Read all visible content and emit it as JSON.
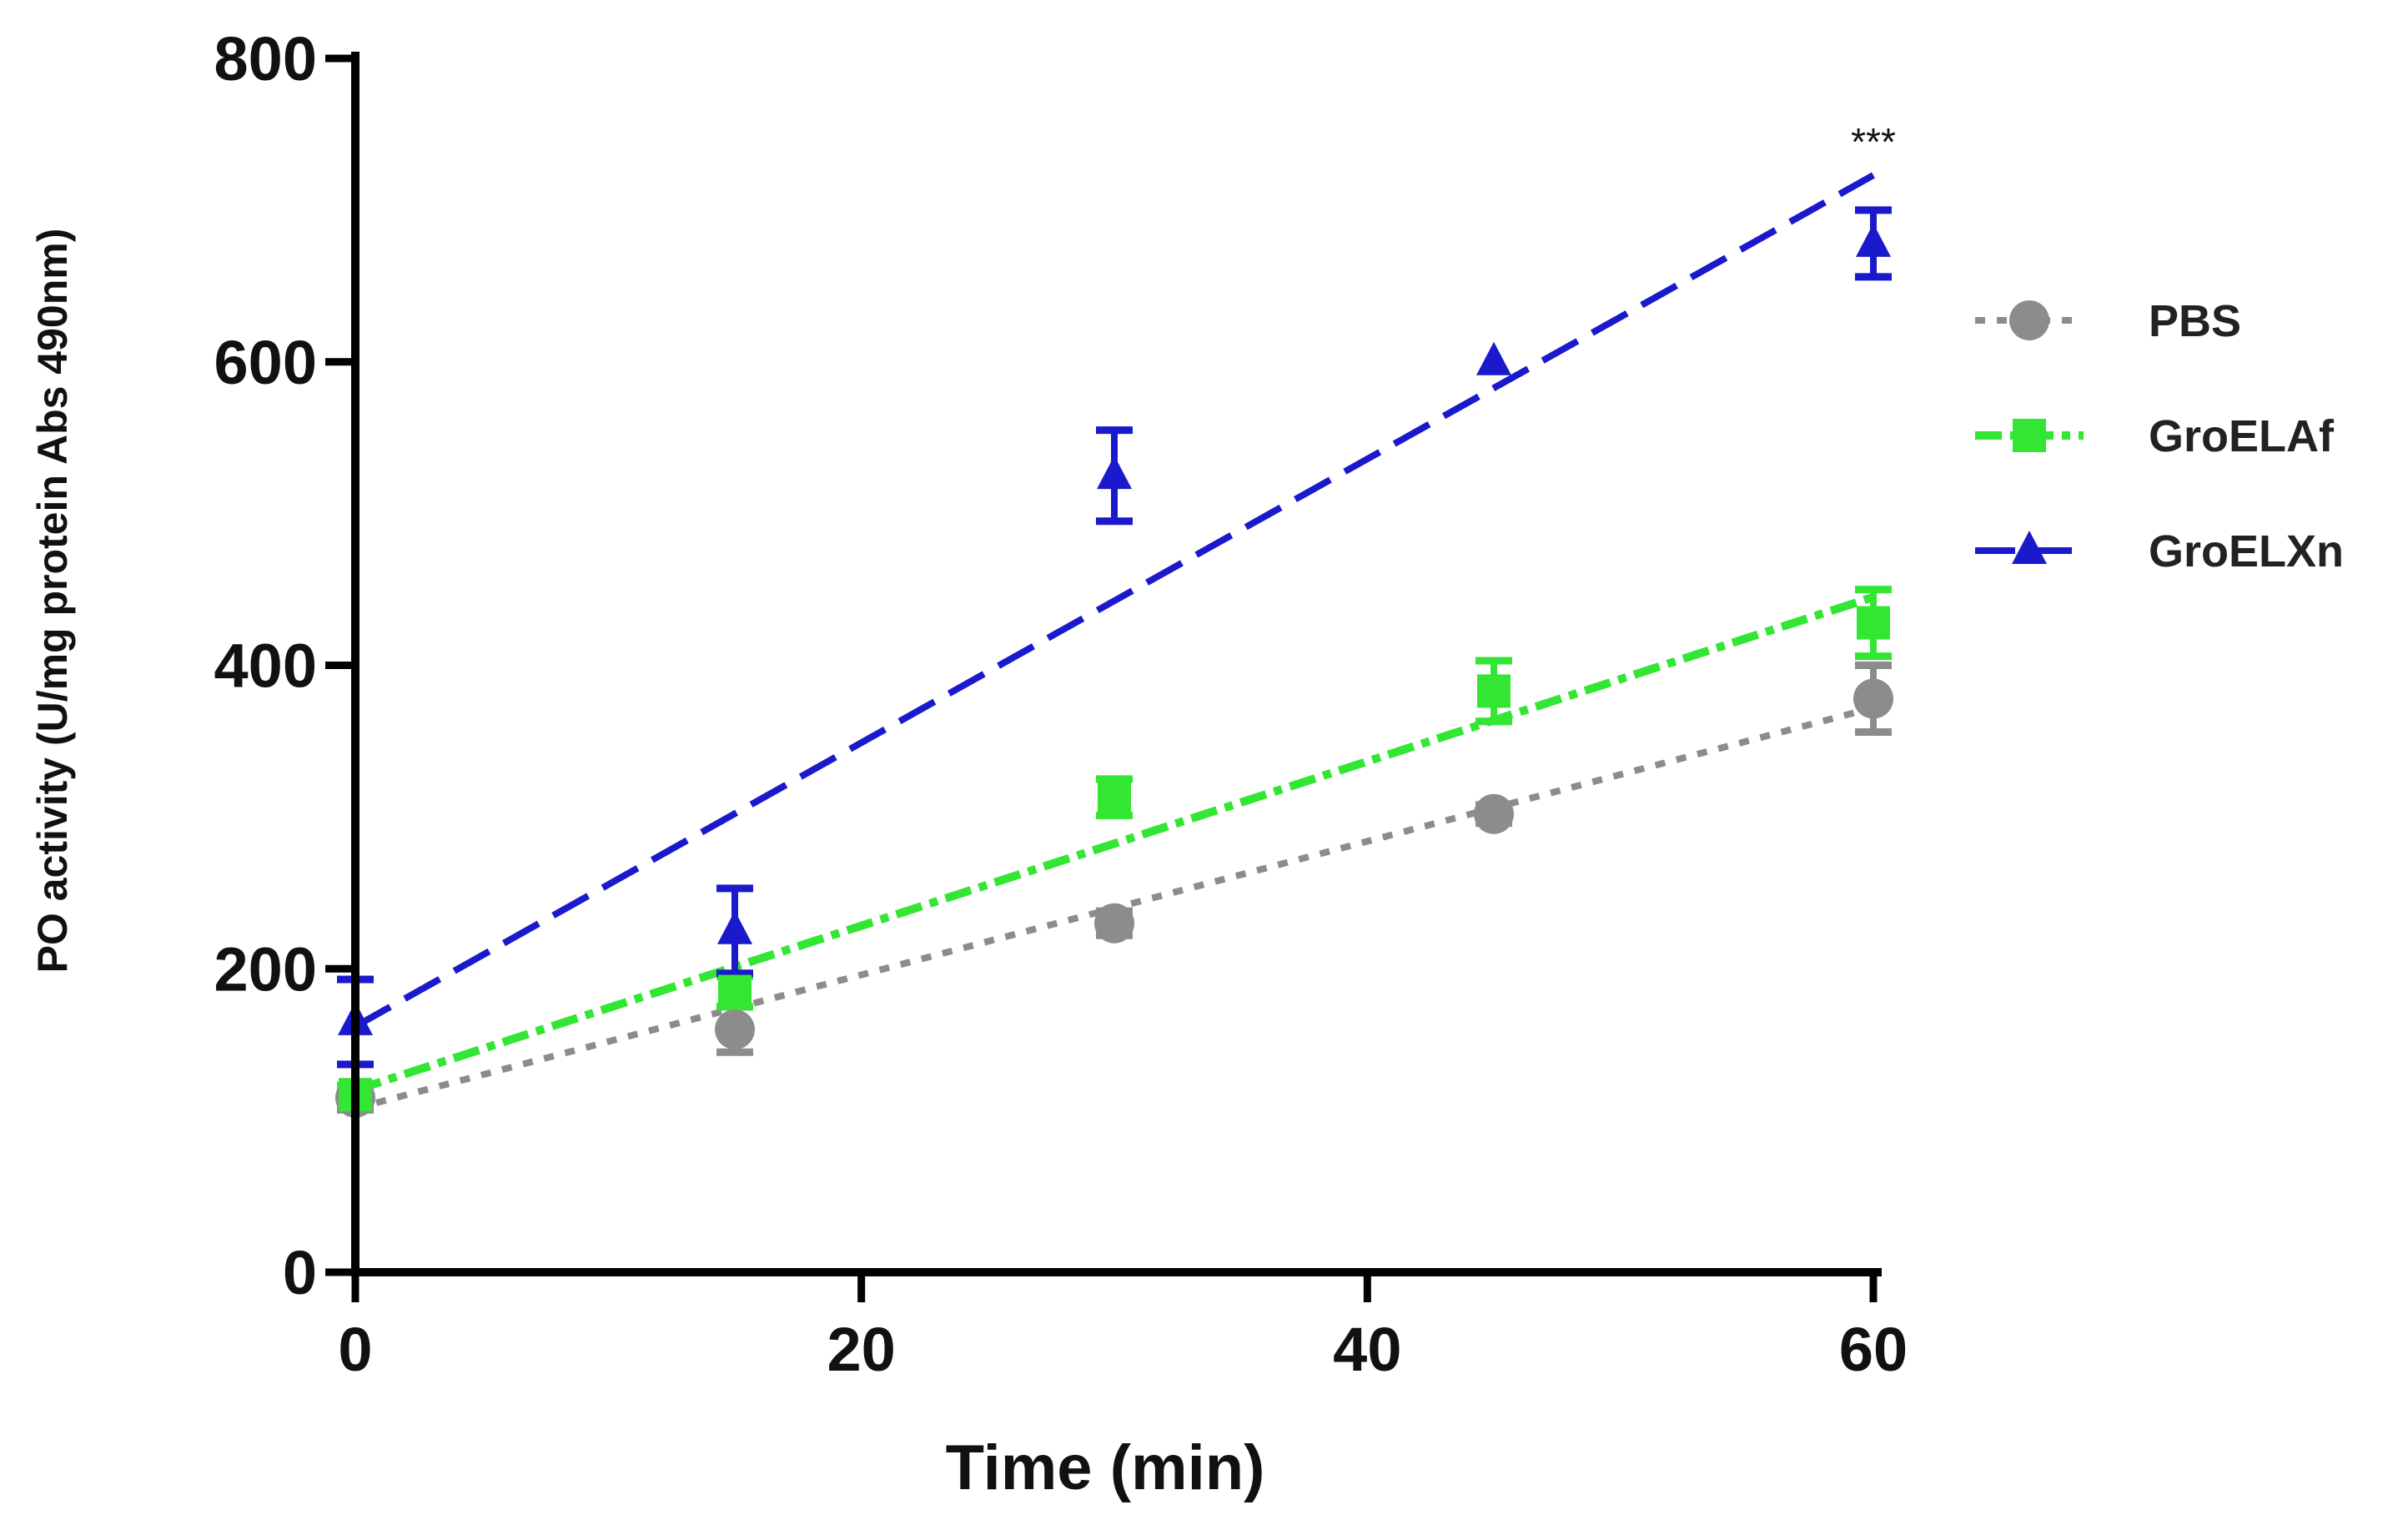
{
  "chart_data": {
    "type": "line",
    "title": "",
    "xlabel": "Time (min)",
    "ylabel": "PO activity (U/mg protein  Abs 490nm)",
    "xlim": [
      0,
      60
    ],
    "ylim": [
      0,
      800
    ],
    "xticks": [
      0,
      20,
      40,
      60
    ],
    "yticks": [
      0,
      200,
      400,
      600,
      800
    ],
    "x": [
      0,
      15,
      30,
      45,
      60
    ],
    "grid": false,
    "legend_position": "right",
    "annotations": [
      {
        "text": "***",
        "x": 60,
        "y": 745
      }
    ],
    "series": [
      {
        "name": "PBS",
        "color": "#8c8c8c",
        "marker": "circle",
        "values": [
          115,
          160,
          230,
          302,
          378
        ],
        "errors": [
          8,
          15,
          8,
          6,
          22
        ],
        "fit": [
          108,
          372
        ]
      },
      {
        "name": "GroELAf",
        "color": "#33e633",
        "marker": "square",
        "values": [
          117,
          185,
          313,
          383,
          428
        ],
        "errors": [
          6,
          10,
          12,
          20,
          22
        ],
        "fit": [
          120,
          445
        ]
      },
      {
        "name": "GroELXn",
        "color": "#1a1acc",
        "marker": "triangle",
        "values": [
          165,
          225,
          525,
          600,
          678
        ],
        "errors": [
          28,
          28,
          30,
          0,
          22
        ],
        "fit": [
          162,
          723
        ]
      }
    ]
  }
}
